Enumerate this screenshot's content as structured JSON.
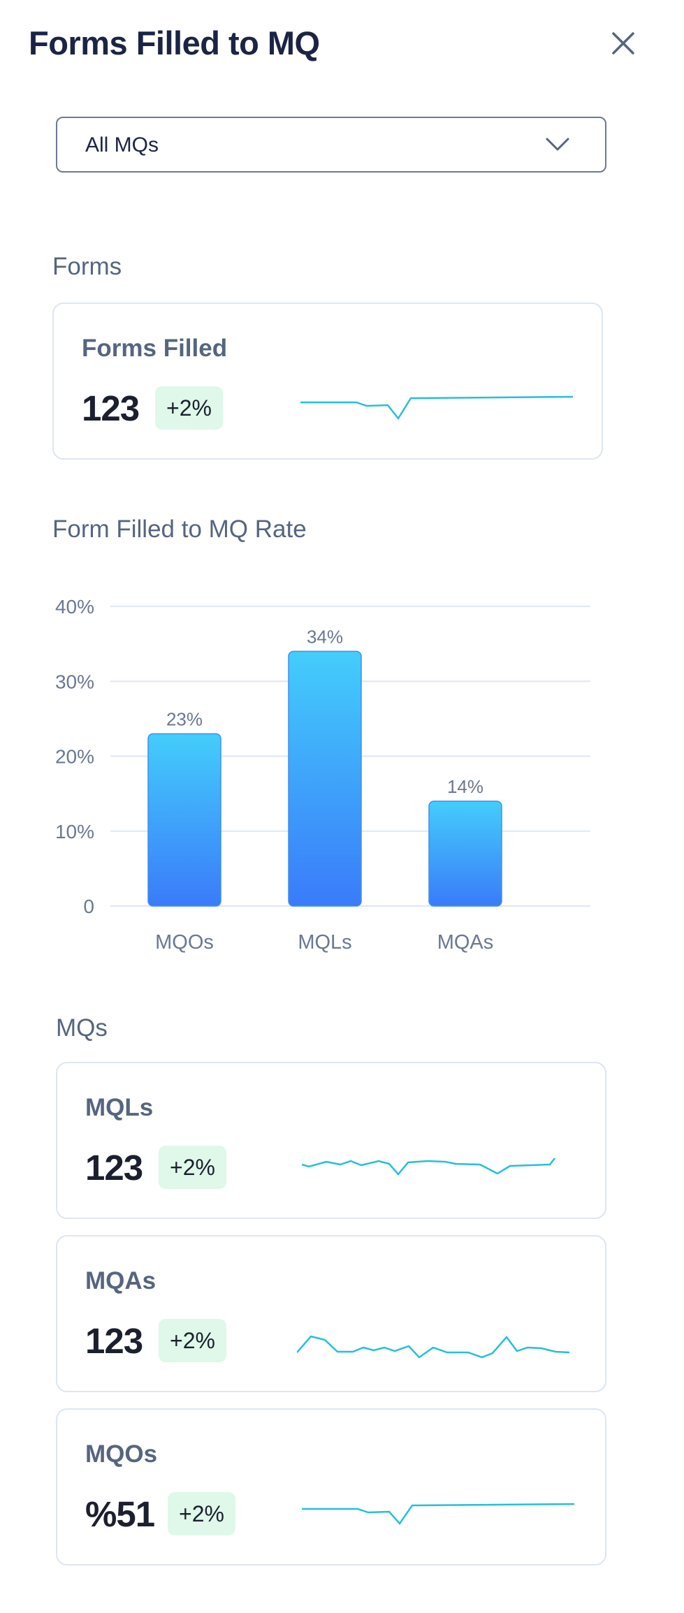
{
  "header": {
    "title": "Forms Filled to MQ",
    "close_icon": "close-icon"
  },
  "filter": {
    "selected": "All MQs",
    "icon": "chevron-down-icon"
  },
  "forms_section": {
    "label": "Forms",
    "card": {
      "title": "Forms Filled",
      "value": "123",
      "change": "+2%"
    }
  },
  "rate_section": {
    "label": "Form Filled to MQ Rate"
  },
  "chart_data": {
    "type": "bar",
    "categories": [
      "MQOs",
      "MQLs",
      "MQAs"
    ],
    "values": [
      23,
      34,
      14
    ],
    "data_labels": [
      "23%",
      "34%",
      "14%"
    ],
    "y_ticks": [
      "0",
      "10%",
      "20%",
      "30%",
      "40%"
    ],
    "ylim": [
      0,
      40
    ],
    "grid": true,
    "colors": {
      "bar_top": "#44cdfb",
      "bar_bottom": "#3a7bfa",
      "grid": "#dfe7f2"
    }
  },
  "mqs_section": {
    "label": "MQs",
    "cards": [
      {
        "title": "MQLs",
        "value": "123",
        "change": "+2%"
      },
      {
        "title": "MQAs",
        "value": "123",
        "change": "+2%"
      },
      {
        "title": "MQOs",
        "value": "%51",
        "change": "+2%"
      }
    ]
  },
  "colors": {
    "sparkline": "#25c0d8",
    "badge_bg": "#dff8e9",
    "accent_text": "#1c2445"
  }
}
